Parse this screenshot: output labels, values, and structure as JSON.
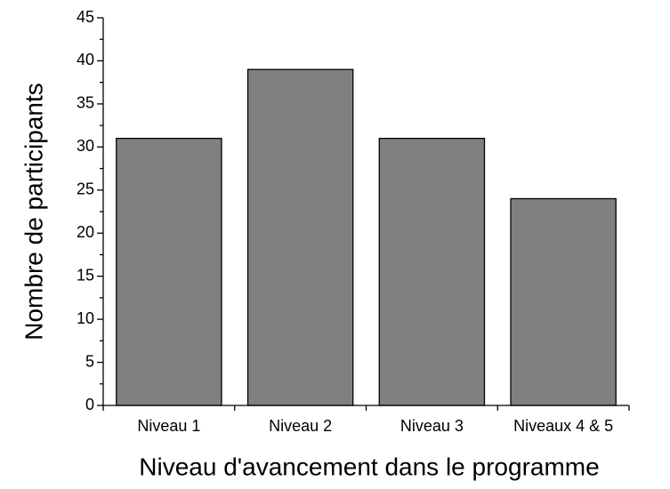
{
  "chart_data": {
    "type": "bar",
    "x_label": "Niveau d'avancement dans le programme",
    "y_label": "Nombre de participants",
    "categories": [
      "Niveau 1",
      "Niveau 2",
      "Niveau 3",
      "Niveaux 4 & 5"
    ],
    "values": [
      31,
      39,
      31,
      24
    ],
    "color": "#808080",
    "ylim": [
      0,
      45
    ],
    "yticks": [
      0,
      5,
      10,
      15,
      20,
      25,
      30,
      35,
      40,
      45
    ],
    "minor_yticks": [
      2.5,
      7.5,
      12.5,
      17.5,
      22.5,
      27.5,
      32.5,
      37.5,
      42.5
    ],
    "grid": false
  }
}
